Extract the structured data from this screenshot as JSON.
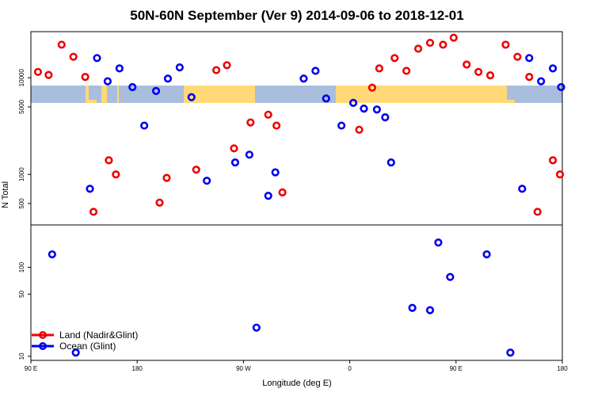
{
  "chart_data": {
    "type": "scatter",
    "title": "50N-60N September (Ver 9)   2014-09-06 to 2018-12-01",
    "xlabel": "Longitude (deg E)",
    "ylabel": "N Total",
    "x_ticks": [
      {
        "lon": 90,
        "label": "90 E"
      },
      {
        "lon": 180,
        "label": "180"
      },
      {
        "lon": 270,
        "label": "90 W"
      },
      {
        "lon": 360,
        "label": "0"
      },
      {
        "lon": 450,
        "label": "90 E"
      },
      {
        "lon": 540,
        "label": "180"
      }
    ],
    "xlim": [
      90,
      540
    ],
    "y_ticks_upper": [
      "10000",
      "5000",
      "1000",
      "500"
    ],
    "y_ticks_lower": [
      "100",
      "50",
      "10"
    ],
    "upper_ylim": [
      300,
      30000
    ],
    "lower_ylim": [
      9,
      300
    ],
    "y_scale": "log",
    "map_band": {
      "land_color": "#FFD878",
      "ocean_color": "#A9BEDD"
    },
    "legend_position": "bottom-left",
    "series": [
      {
        "name": "Land (Nadir&Glint)",
        "color": "#EE0000",
        "points": [
          [
            96,
            11500
          ],
          [
            105,
            10700
          ],
          [
            116,
            22000
          ],
          [
            126,
            16500
          ],
          [
            136,
            10200
          ],
          [
            143,
            410
          ],
          [
            156,
            1400
          ],
          [
            162,
            1000
          ],
          [
            199,
            510
          ],
          [
            205,
            920
          ],
          [
            230,
            1120
          ],
          [
            247,
            12000
          ],
          [
            256,
            13500
          ],
          [
            262,
            1860
          ],
          [
            276,
            3450
          ],
          [
            291,
            4150
          ],
          [
            298,
            3200
          ],
          [
            303,
            650
          ],
          [
            368,
            2900
          ],
          [
            379,
            7900
          ],
          [
            385,
            12500
          ],
          [
            398,
            16000
          ],
          [
            408,
            11800
          ],
          [
            418,
            20000
          ],
          [
            428,
            23000
          ],
          [
            439,
            22000
          ],
          [
            448,
            26000
          ],
          [
            459,
            13700
          ],
          [
            469,
            11500
          ],
          [
            479,
            10600
          ],
          [
            492,
            22000
          ],
          [
            502,
            16500
          ],
          [
            512,
            10200
          ],
          [
            519,
            410
          ],
          [
            532,
            1400
          ],
          [
            538,
            1000
          ]
        ]
      },
      {
        "name": "Ocean (Glint)",
        "color": "#0000EE",
        "points": [
          [
            108,
            140
          ],
          [
            128,
            11
          ],
          [
            140,
            710
          ],
          [
            146,
            16000
          ],
          [
            155,
            9200
          ],
          [
            165,
            12500
          ],
          [
            176,
            8000
          ],
          [
            186,
            3200
          ],
          [
            196,
            7300
          ],
          [
            206,
            9800
          ],
          [
            216,
            12800
          ],
          [
            226,
            6300
          ],
          [
            239,
            860
          ],
          [
            263,
            1330
          ],
          [
            275,
            1600
          ],
          [
            281,
            21
          ],
          [
            291,
            600
          ],
          [
            297,
            1050
          ],
          [
            321,
            9800
          ],
          [
            331,
            11800
          ],
          [
            340,
            6100
          ],
          [
            353,
            3200
          ],
          [
            363,
            5500
          ],
          [
            372,
            4800
          ],
          [
            383,
            4700
          ],
          [
            390,
            3900
          ],
          [
            395,
            1330
          ],
          [
            413,
            35
          ],
          [
            428,
            33
          ],
          [
            435,
            190
          ],
          [
            445,
            78
          ],
          [
            476,
            140
          ],
          [
            496,
            11
          ],
          [
            506,
            710
          ],
          [
            512,
            16000
          ],
          [
            522,
            9200
          ],
          [
            532,
            12500
          ],
          [
            539,
            8000
          ]
        ]
      }
    ]
  }
}
